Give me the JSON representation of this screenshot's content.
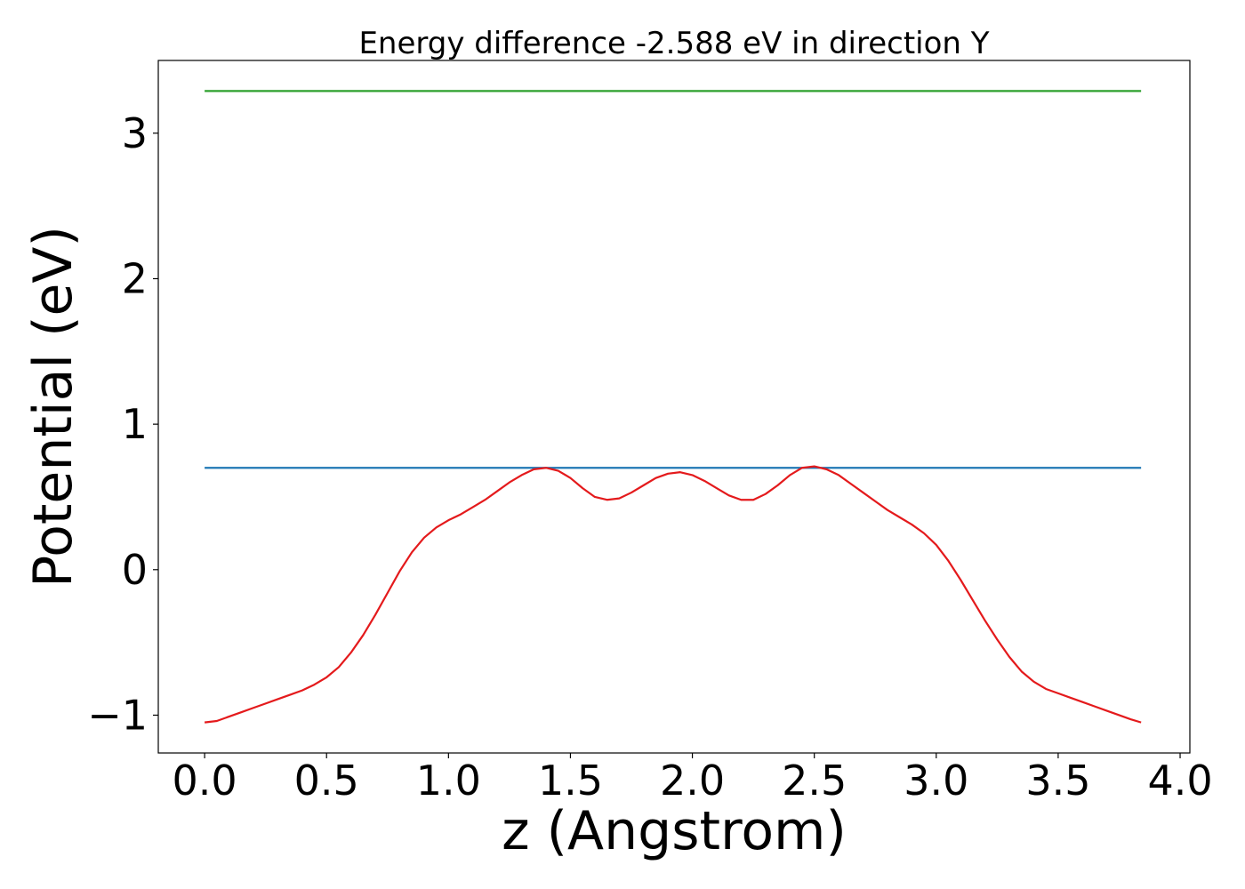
{
  "chart_data": {
    "type": "line",
    "title": "Energy difference -2.588 eV in direction Y",
    "xlabel": "z (Angstrom)",
    "ylabel": "Potential (eV)",
    "xlim": [
      -0.19,
      4.04
    ],
    "ylim": [
      -1.26,
      3.5
    ],
    "xticks": [
      0.0,
      0.5,
      1.0,
      1.5,
      2.0,
      2.5,
      3.0,
      3.5,
      4.0
    ],
    "xtick_labels": [
      "0.0",
      "0.5",
      "1.0",
      "1.5",
      "2.0",
      "2.5",
      "3.0",
      "3.5",
      "4.0"
    ],
    "yticks": [
      -1,
      0,
      1,
      2,
      3
    ],
    "ytick_labels": [
      "−1",
      "0",
      "1",
      "2",
      "3"
    ],
    "grid": false,
    "legend": "none",
    "series": [
      {
        "color": "#2ca02c",
        "x": [
          0.0,
          3.84
        ],
        "y": [
          3.29,
          3.29
        ]
      },
      {
        "color": "#1f77b4",
        "x": [
          0.0,
          3.84
        ],
        "y": [
          0.7,
          0.7
        ]
      },
      {
        "color": "#e41a1c",
        "x": [
          0.0,
          0.05,
          0.1,
          0.15,
          0.2,
          0.25,
          0.3,
          0.35,
          0.4,
          0.45,
          0.5,
          0.55,
          0.6,
          0.65,
          0.7,
          0.75,
          0.8,
          0.85,
          0.9,
          0.95,
          1.0,
          1.05,
          1.1,
          1.15,
          1.2,
          1.25,
          1.3,
          1.35,
          1.4,
          1.45,
          1.5,
          1.55,
          1.6,
          1.65,
          1.7,
          1.75,
          1.8,
          1.85,
          1.9,
          1.95,
          2.0,
          2.05,
          2.1,
          2.15,
          2.2,
          2.25,
          2.3,
          2.35,
          2.4,
          2.45,
          2.5,
          2.55,
          2.6,
          2.65,
          2.7,
          2.75,
          2.8,
          2.85,
          2.9,
          2.95,
          3.0,
          3.05,
          3.1,
          3.15,
          3.2,
          3.25,
          3.3,
          3.35,
          3.4,
          3.45,
          3.5,
          3.55,
          3.6,
          3.65,
          3.7,
          3.75,
          3.8,
          3.84
        ],
        "y": [
          -1.05,
          -1.04,
          -1.01,
          -0.98,
          -0.95,
          -0.92,
          -0.89,
          -0.86,
          -0.83,
          -0.79,
          -0.74,
          -0.67,
          -0.57,
          -0.45,
          -0.31,
          -0.16,
          -0.01,
          0.12,
          0.22,
          0.29,
          0.34,
          0.38,
          0.43,
          0.48,
          0.54,
          0.6,
          0.65,
          0.69,
          0.7,
          0.68,
          0.63,
          0.56,
          0.5,
          0.48,
          0.49,
          0.53,
          0.58,
          0.63,
          0.66,
          0.67,
          0.65,
          0.61,
          0.56,
          0.51,
          0.48,
          0.48,
          0.52,
          0.58,
          0.65,
          0.7,
          0.71,
          0.69,
          0.65,
          0.59,
          0.53,
          0.47,
          0.41,
          0.36,
          0.31,
          0.25,
          0.17,
          0.06,
          -0.07,
          -0.21,
          -0.35,
          -0.48,
          -0.6,
          -0.7,
          -0.77,
          -0.82,
          -0.85,
          -0.88,
          -0.91,
          -0.94,
          -0.97,
          -1.0,
          -1.03,
          -1.05
        ]
      }
    ]
  }
}
